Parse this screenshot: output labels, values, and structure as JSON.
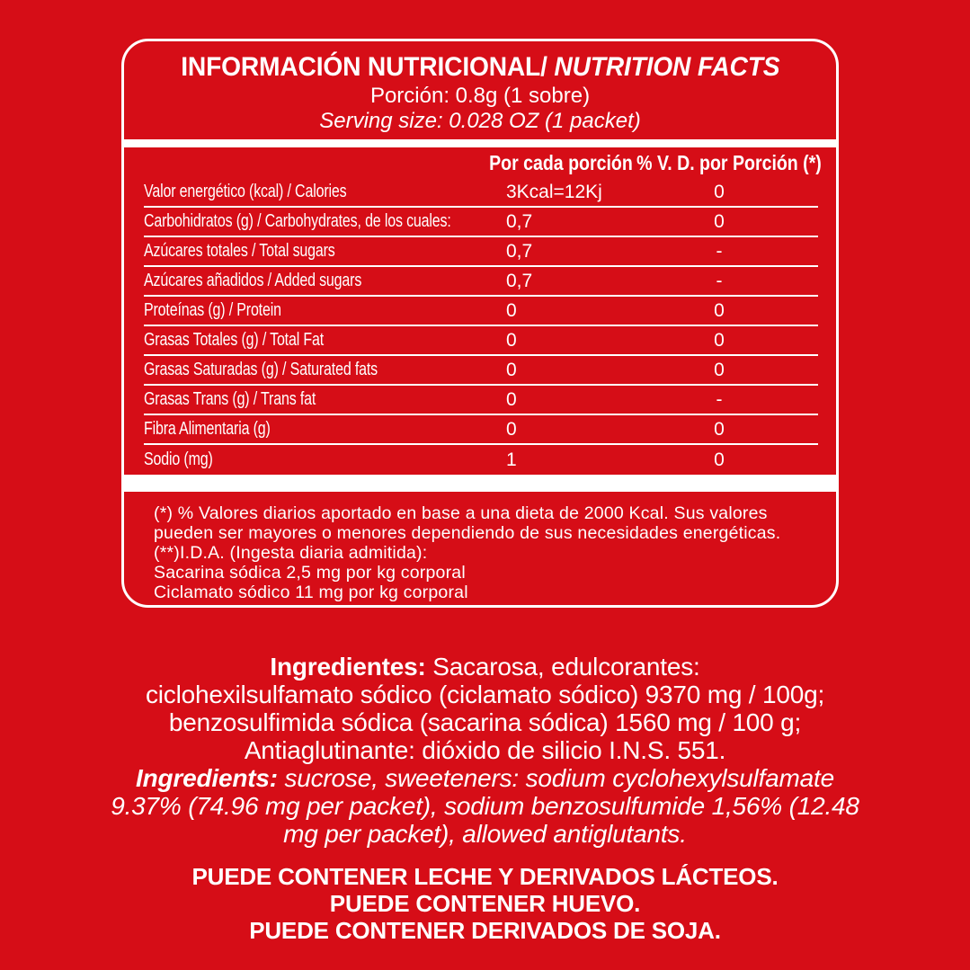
{
  "colors": {
    "background": "#D60D17",
    "text": "#FFFFFF"
  },
  "header": {
    "title_es": "INFORMACIÓN NUTRICIONAL/",
    "title_en": "NUTRITION FACTS",
    "serving_es": "Porción: 0.8g (1 sobre)",
    "serving_en": "Serving size: 0.028 OZ (1 packet)"
  },
  "table": {
    "col_headers": {
      "per_serving": "Por cada porción",
      "daily_value": "% V. D. por Porción (*)"
    },
    "rows": [
      {
        "label": "Valor energético (kcal) / Calories",
        "per_serving": "3Kcal=12Kj",
        "daily_value": "0"
      },
      {
        "label": "Carbohidratos (g) / Carbohydrates, de los cuales:",
        "per_serving": "0,7",
        "daily_value": "0"
      },
      {
        "label": "Azúcares totales / Total sugars",
        "per_serving": "0,7",
        "daily_value": "-"
      },
      {
        "label": "Azúcares añadidos / Added sugars",
        "per_serving": "0,7",
        "daily_value": "-"
      },
      {
        "label": "Proteínas (g) / Protein",
        "per_serving": "0",
        "daily_value": "0"
      },
      {
        "label": "Grasas Totales (g) / Total Fat",
        "per_serving": "0",
        "daily_value": "0"
      },
      {
        "label": "Grasas Saturadas (g) / Saturated fats",
        "per_serving": "0",
        "daily_value": "0"
      },
      {
        "label": "Grasas Trans (g) / Trans fat",
        "per_serving": "0",
        "daily_value": "-"
      },
      {
        "label": "Fibra Alimentaria (g)",
        "per_serving": "0",
        "daily_value": "0"
      },
      {
        "label": "Sodio (mg)",
        "per_serving": "1",
        "daily_value": "0"
      }
    ]
  },
  "footnote": {
    "line1": "(*) % Valores diarios aportado en base a una dieta de 2000 Kcal. Sus valores",
    "line2": "pueden ser mayores o menores dependiendo de sus necesidades energéticas.",
    "line3": "(**)I.D.A. (Ingesta diaria admitida):",
    "line4": "Sacarina sódica 2,5 mg por kg corporal",
    "line5": "Ciclamato sódico 11 mg por kg corporal"
  },
  "ingredients_es": {
    "bold_label": "Ingredientes:",
    "line1_rest": " Sacarosa, edulcorantes:",
    "line2": "ciclohexilsulfamato sódico (ciclamato sódico) 9370 mg / 100g;",
    "line3": "benzosulfimida sódica (sacarina sódica) 1560 mg / 100 g;",
    "line4": "Antiaglutinante: dióxido de silicio I.N.S. 551."
  },
  "ingredients_en": {
    "bold_label": "Ingredients:",
    "line1_rest": " sucrose, sweeteners: sodium cyclohexylsulfamate",
    "line2": "9.37% (74.96 mg per packet), sodium benzosulfumide 1,56% (12.48",
    "line3": "mg per packet), allowed antiglutants."
  },
  "allergens": [
    "PUEDE CONTENER LECHE Y DERIVADOS LÁCTEOS.",
    "PUEDE CONTENER HUEVO.",
    "PUEDE CONTENER DERIVADOS DE SOJA."
  ]
}
